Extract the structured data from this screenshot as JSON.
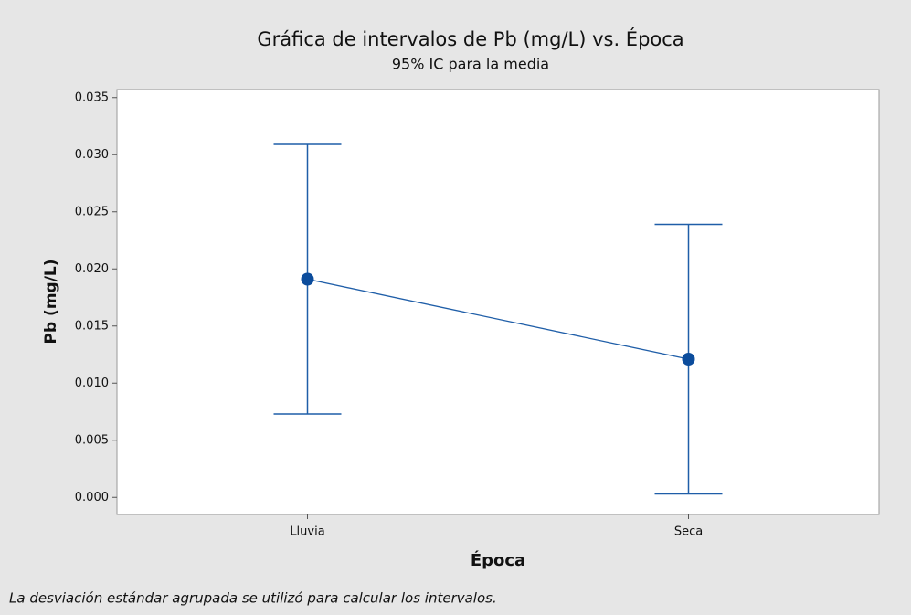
{
  "chart_data": {
    "type": "interval",
    "title": "Gráfica de intervalos de Pb (mg/L) vs. Época",
    "subtitle": "95% IC para la media",
    "x_label": "Época",
    "y_label": "Pb (mg/L)",
    "note": "La desviación estándar agrupada se utilizó para calcular los intervalos.",
    "categories": [
      "Lluvia",
      "Seca"
    ],
    "values": [
      0.0191,
      0.0121
    ],
    "errors": [
      0.0118,
      0.0118
    ],
    "color": "#1f5ea8",
    "marker_color": "#0b4c9c",
    "ylim": [
      -0.0015,
      0.0357
    ],
    "yticks": [
      {
        "value": 0,
        "label": "0.000"
      },
      0.005,
      {
        "value": 0.01,
        "label": "0.010"
      },
      0.015,
      {
        "value": 0.02,
        "label": "0.020"
      },
      0.025,
      {
        "value": 0.03,
        "label": "0.030"
      },
      0.035
    ],
    "grid": false
  }
}
